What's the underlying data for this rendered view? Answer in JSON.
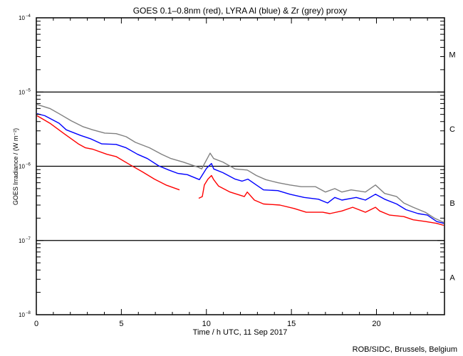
{
  "chart_data": {
    "type": "line",
    "title": "GOES 0.1–0.8nm (red), LYRA Al (blue) & Zr (grey) proxy",
    "xlabel": "Time / h UTC, 11 Sep 2017",
    "ylabel": "GOES Irradiance / (W m⁻²)",
    "xlim": [
      0,
      24
    ],
    "ylim": [
      1e-08,
      0.0001
    ],
    "yscale": "log",
    "xticks": [
      0,
      5,
      10,
      15,
      20
    ],
    "xtick_labels": [
      "0",
      "5",
      "10",
      "15",
      "20"
    ],
    "yticks": [
      {
        "value": 0.0001,
        "base": "10",
        "exp": "-4"
      },
      {
        "value": 1e-05,
        "base": "10",
        "exp": "-5"
      },
      {
        "value": 1e-06,
        "base": "10",
        "exp": "-6"
      },
      {
        "value": 1e-07,
        "base": "10",
        "exp": "-7"
      },
      {
        "value": 1e-08,
        "base": "10",
        "exp": "-8"
      }
    ],
    "reference_lines": [
      1e-05,
      1e-06,
      1e-07
    ],
    "class_labels": [
      {
        "label": "M",
        "value": 3.2e-05
      },
      {
        "label": "C",
        "value": 3.2e-06
      },
      {
        "label": "B",
        "value": 3.2e-07
      },
      {
        "label": "A",
        "value": 3.2e-08
      }
    ],
    "series": [
      {
        "name": "LYRA Zr proxy",
        "color": "#808080",
        "points": [
          [
            0.04,
            6.8e-06
          ],
          [
            0.8,
            6e-06
          ],
          [
            1.34,
            5.1e-06
          ],
          [
            2.05,
            4.1e-06
          ],
          [
            2.76,
            3.4e-06
          ],
          [
            3.31,
            3.1e-06
          ],
          [
            4.02,
            2.8e-06
          ],
          [
            4.69,
            2.75e-06
          ],
          [
            5.28,
            2.5e-06
          ],
          [
            5.82,
            2.1e-06
          ],
          [
            6.66,
            1.77e-06
          ],
          [
            7.37,
            1.45e-06
          ],
          [
            7.92,
            1.27e-06
          ],
          [
            8.63,
            1.14e-06
          ],
          [
            9.47,
            9.8e-07
          ],
          [
            9.72,
            9.2e-07
          ],
          [
            10.22,
            1.5e-06
          ],
          [
            10.43,
            1.27e-06
          ],
          [
            10.97,
            1.14e-06
          ],
          [
            11.69,
            9.2e-07
          ],
          [
            12.4,
            8.9e-07
          ],
          [
            12.94,
            7.5e-07
          ],
          [
            13.49,
            6.6e-07
          ],
          [
            14.2,
            6e-07
          ],
          [
            14.91,
            5.6e-07
          ],
          [
            15.58,
            5.3e-07
          ],
          [
            16.42,
            5.3e-07
          ],
          [
            17.0,
            4.5e-07
          ],
          [
            17.55,
            5e-07
          ],
          [
            17.97,
            4.5e-07
          ],
          [
            18.51,
            4.8e-07
          ],
          [
            19.35,
            4.5e-07
          ],
          [
            19.94,
            5.6e-07
          ],
          [
            20.48,
            4.3e-07
          ],
          [
            21.19,
            3.9e-07
          ],
          [
            21.61,
            3.2e-07
          ],
          [
            22.16,
            2.8e-07
          ],
          [
            22.87,
            2.4e-07
          ],
          [
            23.41,
            2e-07
          ],
          [
            23.96,
            1.75e-07
          ]
        ]
      },
      {
        "name": "LYRA Al proxy",
        "color": "#0000ff",
        "points": [
          [
            0.04,
            5.1e-06
          ],
          [
            0.5,
            4.8e-06
          ],
          [
            1.34,
            3.8e-06
          ],
          [
            1.76,
            3.1e-06
          ],
          [
            2.6,
            2.6e-06
          ],
          [
            3.18,
            2.35e-06
          ],
          [
            3.85,
            2e-06
          ],
          [
            4.69,
            1.97e-06
          ],
          [
            5.28,
            1.77e-06
          ],
          [
            5.95,
            1.45e-06
          ],
          [
            6.53,
            1.27e-06
          ],
          [
            7.2,
            1.01e-06
          ],
          [
            7.79,
            8.9e-07
          ],
          [
            8.33,
            8e-07
          ],
          [
            8.88,
            7.7e-07
          ],
          [
            9.59,
            6.6e-07
          ],
          [
            10.01,
            9.4e-07
          ],
          [
            10.3,
            1.09e-06
          ],
          [
            10.43,
            9.2e-07
          ],
          [
            10.97,
            8.2e-07
          ],
          [
            11.69,
            6.7e-07
          ],
          [
            12.1,
            6.3e-07
          ],
          [
            12.44,
            6.7e-07
          ],
          [
            12.94,
            5.6e-07
          ],
          [
            13.36,
            4.8e-07
          ],
          [
            14.2,
            4.7e-07
          ],
          [
            14.91,
            4.2e-07
          ],
          [
            15.75,
            3.8e-07
          ],
          [
            16.59,
            3.6e-07
          ],
          [
            17.13,
            3.2e-07
          ],
          [
            17.55,
            3.8e-07
          ],
          [
            17.97,
            3.5e-07
          ],
          [
            18.81,
            3.8e-07
          ],
          [
            19.35,
            3.5e-07
          ],
          [
            19.94,
            4.2e-07
          ],
          [
            20.48,
            3.6e-07
          ],
          [
            21.19,
            3.1e-07
          ],
          [
            21.74,
            2.6e-07
          ],
          [
            22.45,
            2.3e-07
          ],
          [
            22.99,
            2.2e-07
          ],
          [
            23.54,
            1.8e-07
          ],
          [
            23.96,
            1.7e-07
          ]
        ]
      },
      {
        "name": "GOES 0.1-0.8nm",
        "color": "#ff0000",
        "points": [
          [
            0.04,
            4.8e-06
          ],
          [
            0.8,
            3.8e-06
          ],
          [
            1.63,
            2.75e-06
          ],
          [
            2.47,
            2e-06
          ],
          [
            2.89,
            1.77e-06
          ],
          [
            3.31,
            1.7e-06
          ],
          [
            4.15,
            1.45e-06
          ],
          [
            4.69,
            1.35e-06
          ],
          [
            5.53,
            1.04e-06
          ],
          [
            6.24,
            8.4e-07
          ],
          [
            6.95,
            6.7e-07
          ],
          [
            7.62,
            5.6e-07
          ],
          [
            8.42,
            4.8e-07
          ],
          [
            8.9,
            null
          ],
          [
            9.55,
            3.7e-07
          ],
          [
            9.76,
            3.9e-07
          ],
          [
            9.88,
            5.6e-07
          ],
          [
            10.09,
            6.7e-07
          ],
          [
            10.3,
            7.5e-07
          ],
          [
            10.43,
            6.6e-07
          ],
          [
            10.72,
            5.4e-07
          ],
          [
            11.39,
            4.5e-07
          ],
          [
            12.23,
            3.9e-07
          ],
          [
            12.4,
            4.5e-07
          ],
          [
            12.82,
            3.5e-07
          ],
          [
            13.36,
            3.1e-07
          ],
          [
            14.32,
            3e-07
          ],
          [
            15.16,
            2.7e-07
          ],
          [
            15.87,
            2.4e-07
          ],
          [
            16.84,
            2.4e-07
          ],
          [
            17.26,
            2.3e-07
          ],
          [
            17.97,
            2.5e-07
          ],
          [
            18.6,
            2.8e-07
          ],
          [
            19.35,
            2.4e-07
          ],
          [
            19.94,
            2.8e-07
          ],
          [
            20.19,
            2.5e-07
          ],
          [
            20.77,
            2.2e-07
          ],
          [
            21.61,
            2.1e-07
          ],
          [
            22.16,
            1.9e-07
          ],
          [
            22.87,
            1.8e-07
          ],
          [
            23.54,
            1.7e-07
          ],
          [
            23.96,
            1.6e-07
          ]
        ]
      }
    ]
  },
  "footer": {
    "credit": "ROB/SIDC, Brussels, Belgium"
  }
}
